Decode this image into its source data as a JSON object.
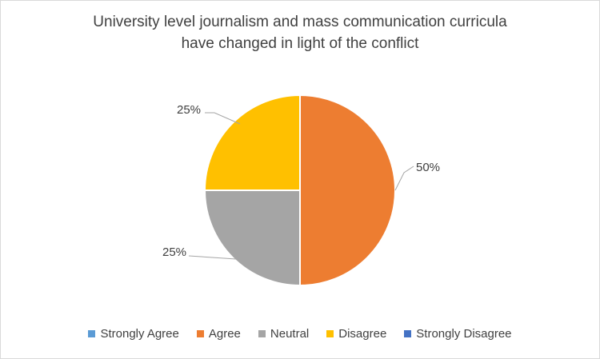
{
  "chart_data": {
    "type": "pie",
    "title": [
      "University level journalism and mass communication curricula",
      "have changed in light of the conflict"
    ],
    "categories": [
      "Strongly Agree",
      "Agree",
      "Neutral",
      "Disagree",
      "Strongly Disagree"
    ],
    "values": [
      0,
      50,
      25,
      25,
      0
    ],
    "data_labels": [
      "",
      "50%",
      "25%",
      "25%",
      ""
    ],
    "colors": [
      "#5B9BD5",
      "#ED7D31",
      "#A5A5A5",
      "#FFC000",
      "#4472C4"
    ],
    "legend_position": "bottom"
  }
}
